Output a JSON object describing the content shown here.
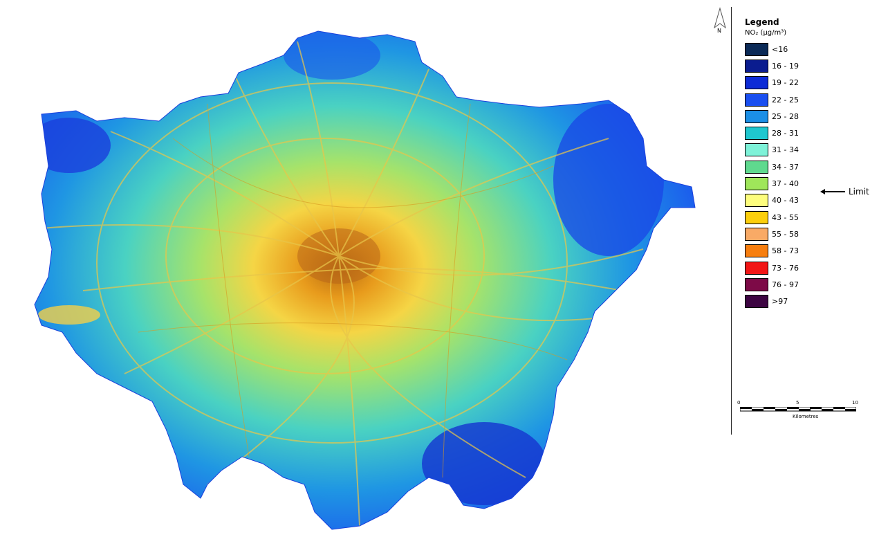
{
  "map": {
    "region_name": "",
    "pollutant": "NO₂"
  },
  "north_arrow": {
    "label": "N"
  },
  "legend": {
    "title": "Legend",
    "subtitle": "NO₂ (μg/m³)",
    "items": [
      {
        "label": "<16",
        "color": "#0b2a57"
      },
      {
        "label": "16 - 19",
        "color": "#0a1c8f"
      },
      {
        "label": "19 - 22",
        "color": "#0d2bd6"
      },
      {
        "label": "22 - 25",
        "color": "#1a4ff0"
      },
      {
        "label": "25 - 28",
        "color": "#1b8fe6"
      },
      {
        "label": "28 - 31",
        "color": "#1fc7cf"
      },
      {
        "label": "31 - 34",
        "color": "#7ef2d8"
      },
      {
        "label": "34 - 37",
        "color": "#5fd98e"
      },
      {
        "label": "37 - 40",
        "color": "#9fe65a"
      },
      {
        "label": "40 - 43",
        "color": "#fdfd7d"
      },
      {
        "label": "43 - 55",
        "color": "#fccf0c"
      },
      {
        "label": "55 - 58",
        "color": "#f9aa66"
      },
      {
        "label": "58 - 73",
        "color": "#f77e0f"
      },
      {
        "label": "73 - 76",
        "color": "#f21616"
      },
      {
        "label": "76 - 97",
        "color": "#7d0a47"
      },
      {
        "label": ">97",
        "color": "#3d0542"
      }
    ]
  },
  "limit_annotation": {
    "label": "Limit"
  },
  "scale_bar": {
    "ticks": [
      "0",
      "5",
      "10"
    ],
    "units": "Kilometres"
  }
}
